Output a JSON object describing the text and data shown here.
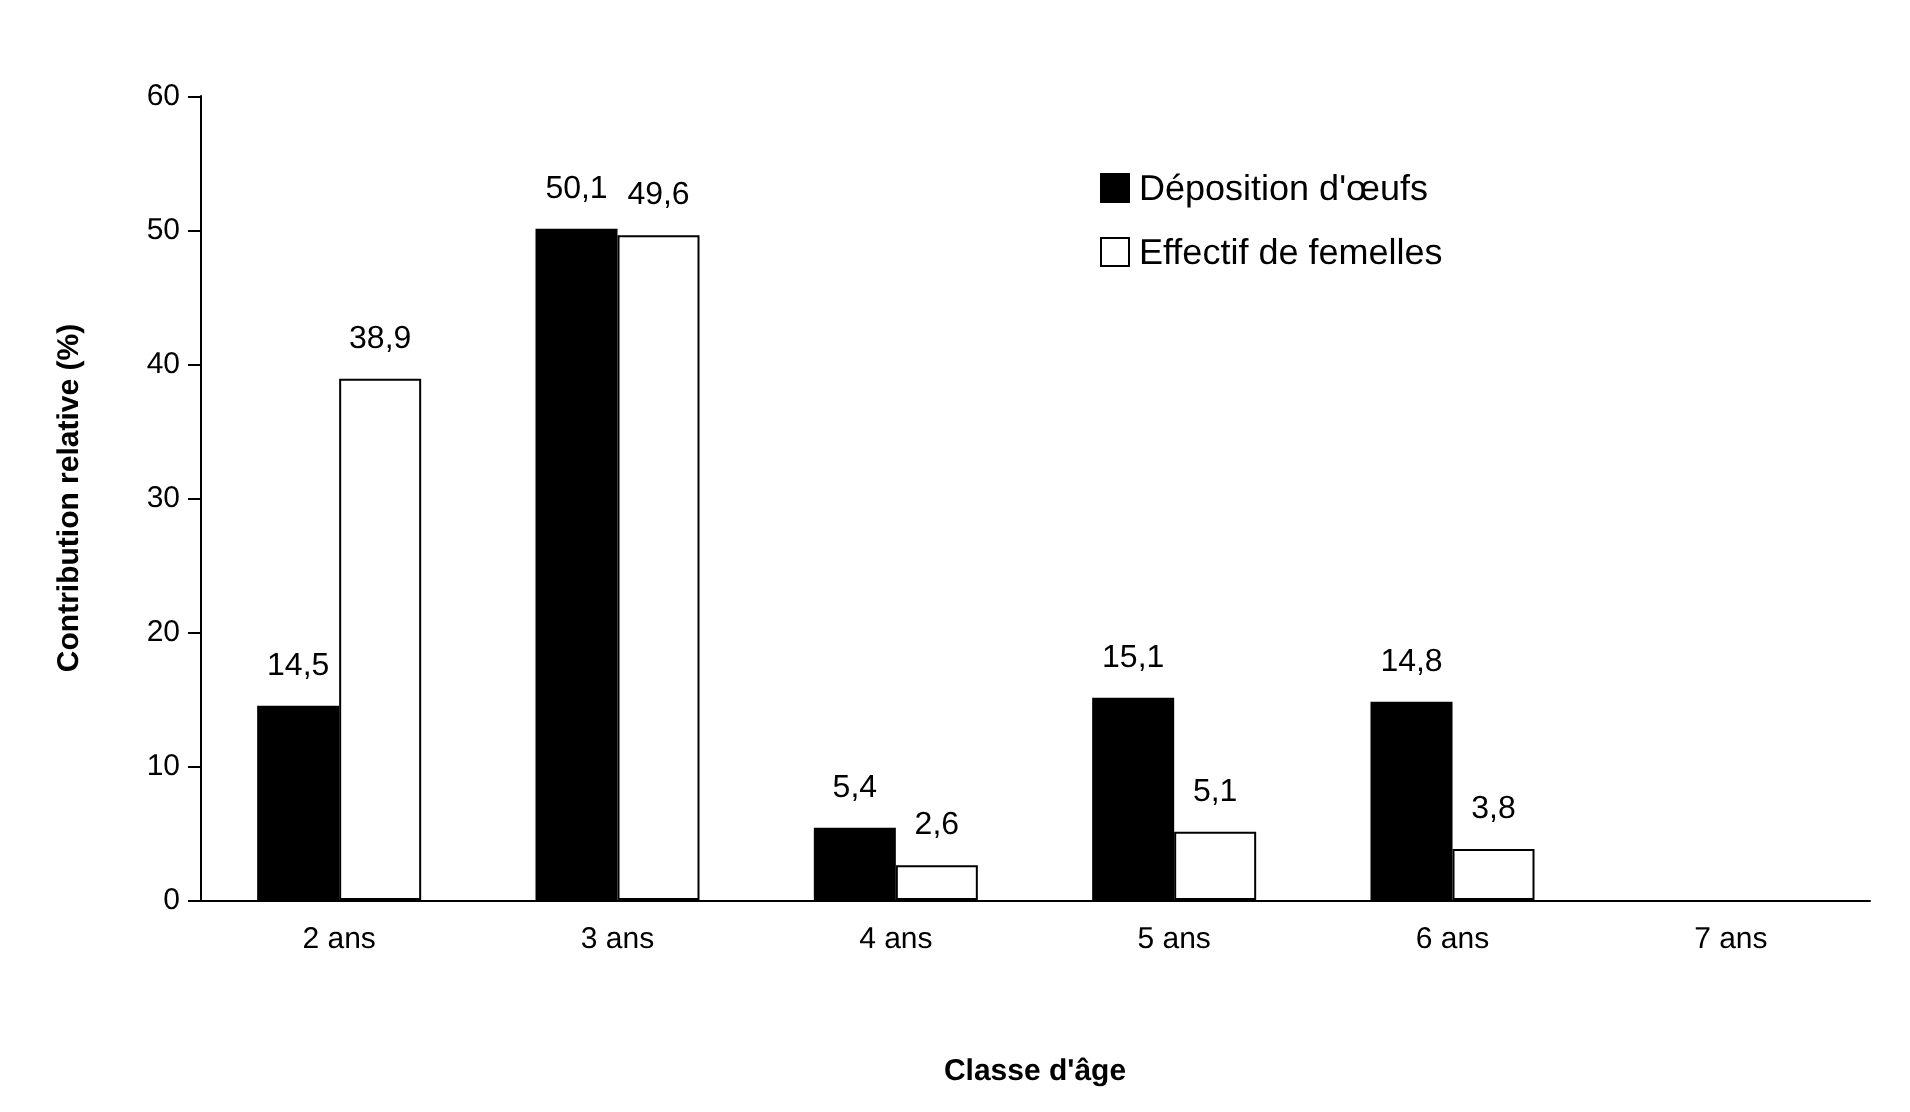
{
  "chart_data": {
    "type": "bar",
    "xlabel": "Classe d'âge",
    "ylabel": "Contribution relative (%)",
    "categories": [
      "2 ans",
      "3 ans",
      "4 ans",
      "5 ans",
      "6 ans",
      "7 ans"
    ],
    "series": [
      {
        "name": "Déposition d'œufs",
        "color": "#000000",
        "values": [
          14.5,
          50.1,
          5.4,
          15.1,
          14.8,
          null
        ],
        "value_labels": [
          "14,5",
          "50,1",
          "5,4",
          "15,1",
          "14,8",
          null
        ]
      },
      {
        "name": "Effectif de femelles",
        "color": "#ffffff",
        "values": [
          38.9,
          49.6,
          2.6,
          5.1,
          3.8,
          null
        ],
        "value_labels": [
          "38,9",
          "49,6",
          "2,6",
          "5,1",
          "3,8",
          null
        ]
      }
    ],
    "ylim": [
      0,
      60
    ],
    "yticks": [
      0,
      10,
      20,
      30,
      40,
      50,
      60
    ],
    "grid": false,
    "legend": "top right"
  }
}
